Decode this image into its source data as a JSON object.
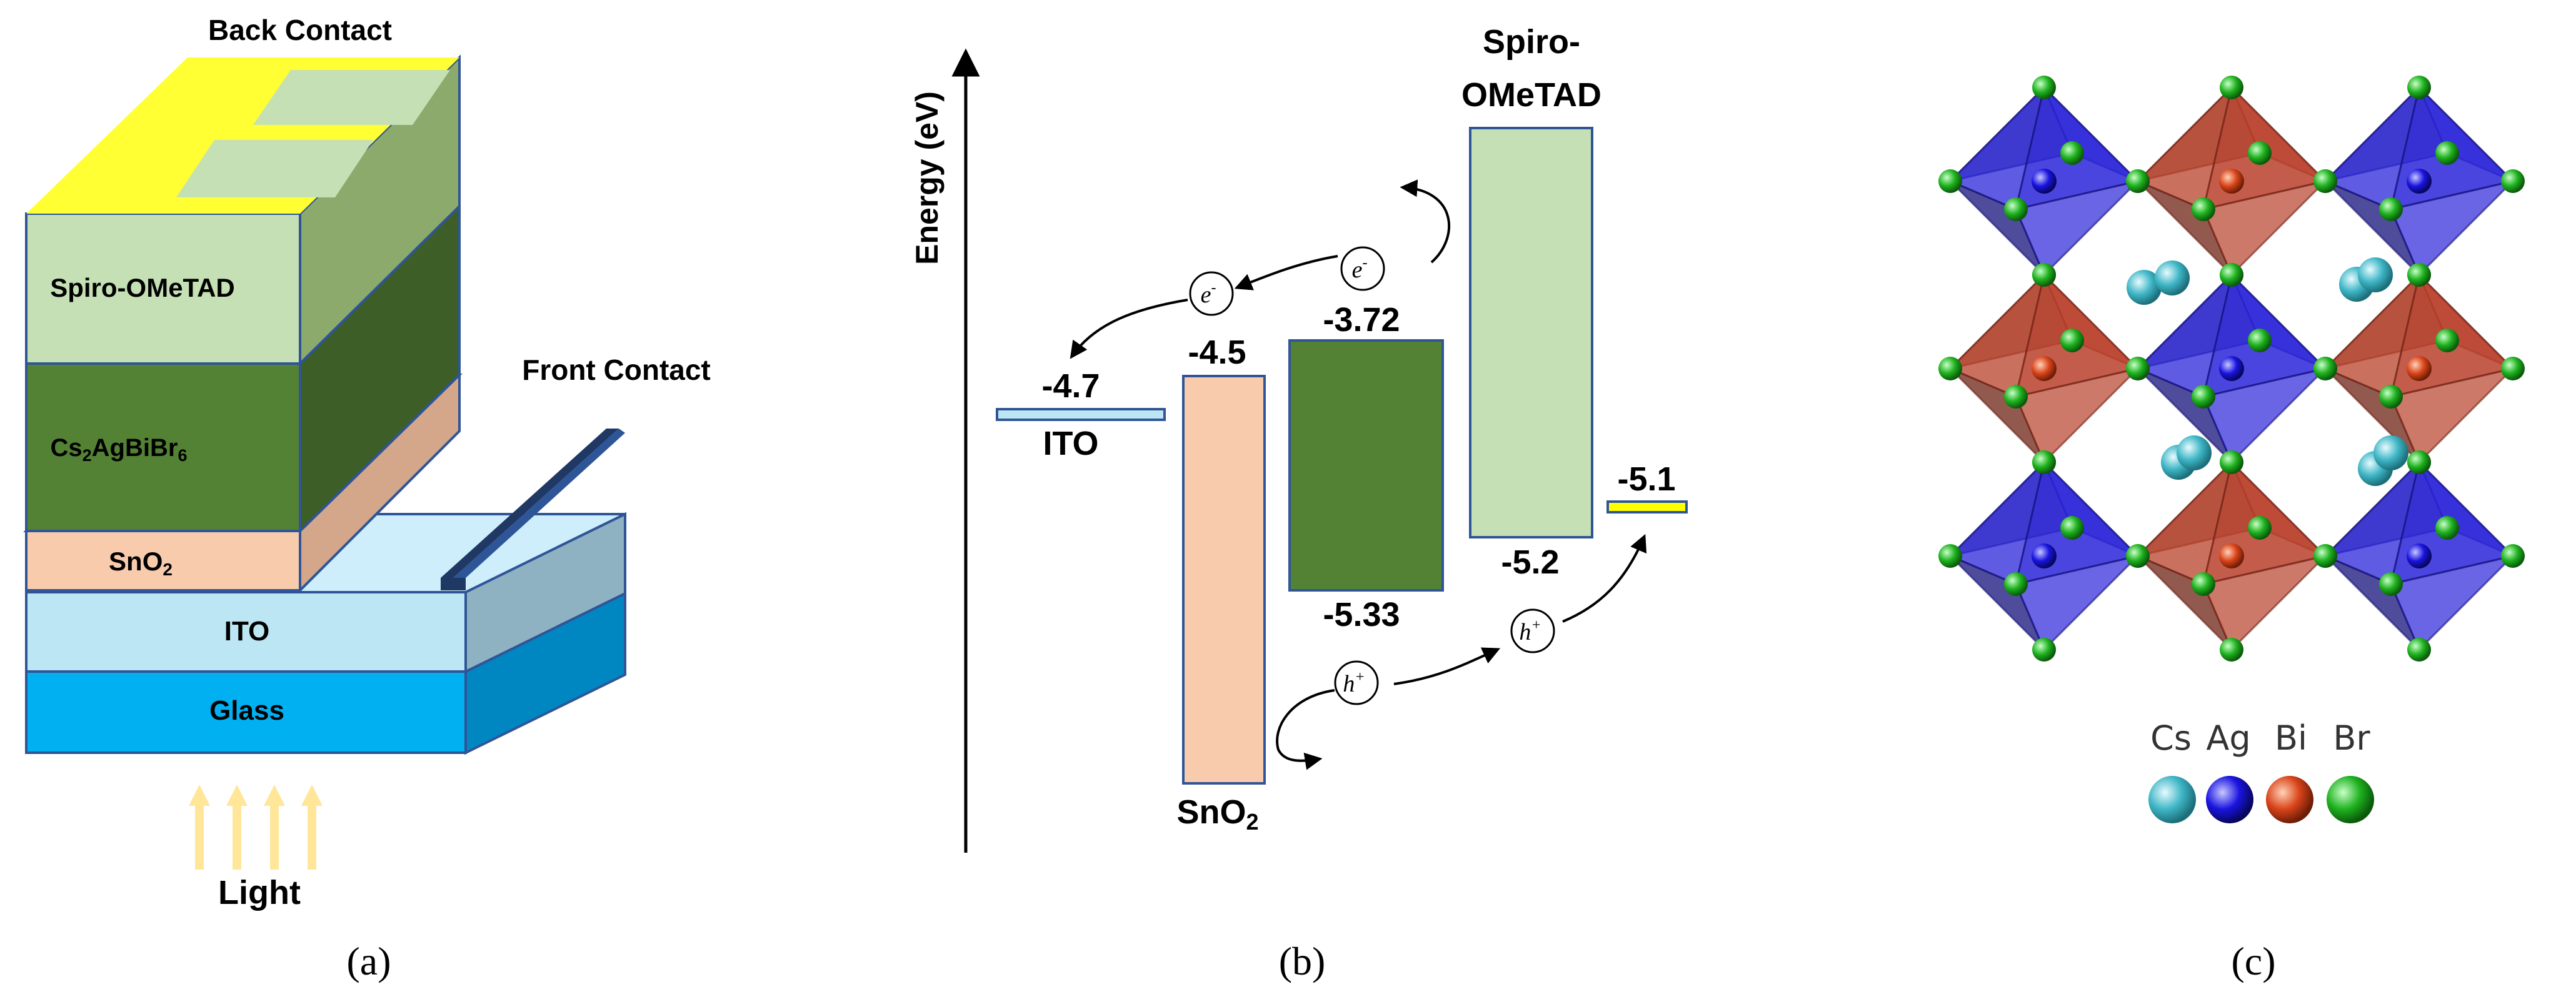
{
  "panel_a": {
    "label": "(a)",
    "back_contact": "Back Contact",
    "front_contact": "Front Contact",
    "light": "Light",
    "layers": [
      {
        "label": "Spiro-OMeTAD"
      },
      {
        "label_main": "Cs",
        "sub1": "2",
        "mid": "AgBiBr",
        "sub2": "6"
      },
      {
        "label_main": "SnO",
        "sub1": "2"
      },
      {
        "label": "ITO"
      },
      {
        "label": "Glass"
      }
    ]
  },
  "panel_b": {
    "label": "(b)",
    "y_axis_label": "Energy (eV)",
    "ito": {
      "name": "ITO",
      "level": "-4.7"
    },
    "sno2": {
      "name_main": "SnO",
      "name_sub": "2",
      "top": "-4.5"
    },
    "absorber": {
      "top": "-3.72",
      "bottom": "-5.33"
    },
    "spiro": {
      "name_line1": "Spiro-",
      "name_line2": "OMeTAD",
      "bottom": "-5.2"
    },
    "back_metal": {
      "level": "-5.1"
    },
    "carriers": {
      "electron": "e",
      "electron_sup": "-",
      "hole": "h",
      "hole_sup": "+"
    }
  },
  "panel_c": {
    "label": "(c)",
    "legend": [
      {
        "symbol": "Cs",
        "color": "#3fb6c6"
      },
      {
        "symbol": "Ag",
        "color": "#1a14e0"
      },
      {
        "symbol": "Bi",
        "color": "#d9441a"
      },
      {
        "symbol": "Br",
        "color": "#1fb21f"
      }
    ]
  },
  "colors": {
    "back_contact": "#ffff33",
    "spiro": "#c5e0b4",
    "absorber": "#548235",
    "sno2": "#f8cbad",
    "ito": "#bde6f5",
    "glass": "#00b0f0",
    "front_contact": "#1f3864",
    "light": "#ffe699"
  }
}
